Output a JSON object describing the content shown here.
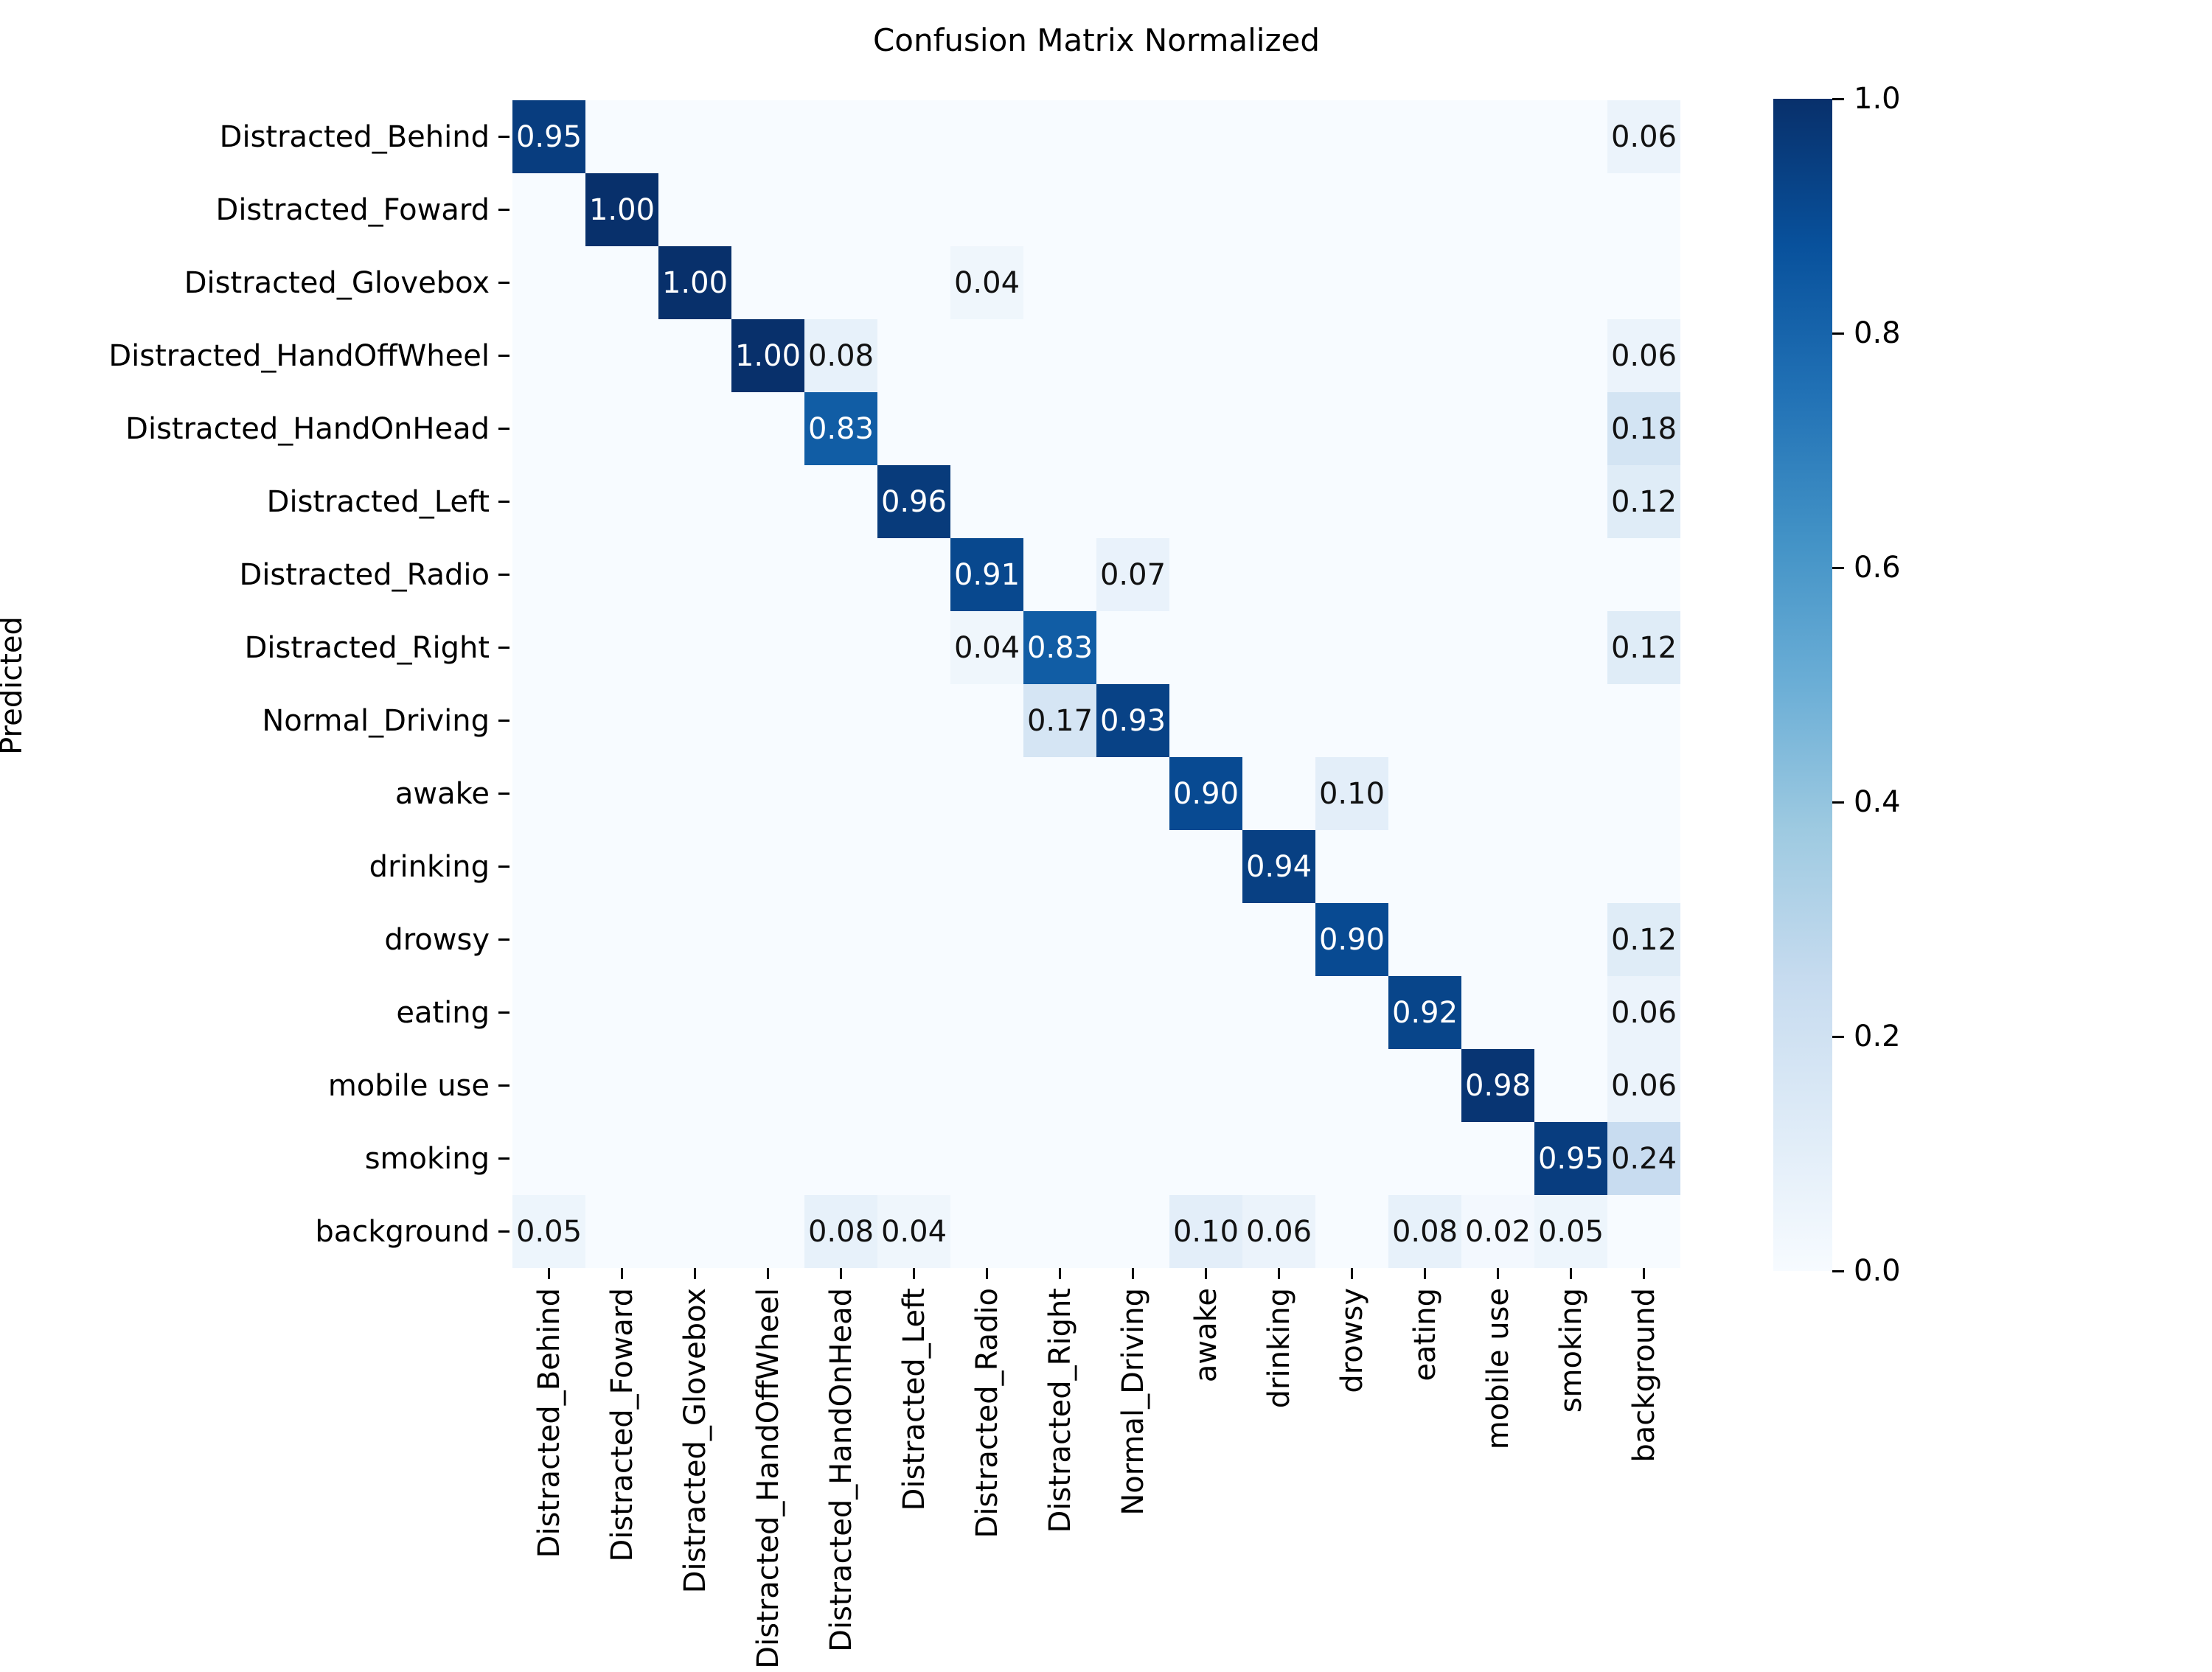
{
  "title": "Confusion Matrix Normalized",
  "axes": {
    "ylabel": "Predicted"
  },
  "chart_data": {
    "type": "heatmap",
    "title": "Confusion Matrix Normalized",
    "ylabel": "Predicted",
    "xlabel": "",
    "categories": [
      "Distracted_Behind",
      "Distracted_Foward",
      "Distracted_Glovebox",
      "Distracted_HandOffWheel",
      "Distracted_HandOnHead",
      "Distracted_Left",
      "Distracted_Radio",
      "Distracted_Right",
      "Normal_Driving",
      "awake",
      "drinking",
      "drowsy",
      "eating",
      "mobile use",
      "smoking",
      "background"
    ],
    "matrix": [
      [
        0.95,
        0,
        0,
        0,
        0,
        0,
        0,
        0,
        0,
        0,
        0,
        0,
        0,
        0,
        0,
        0.06
      ],
      [
        0,
        1.0,
        0,
        0,
        0,
        0,
        0,
        0,
        0,
        0,
        0,
        0,
        0,
        0,
        0,
        0
      ],
      [
        0,
        0,
        1.0,
        0,
        0,
        0,
        0.04,
        0,
        0,
        0,
        0,
        0,
        0,
        0,
        0,
        0
      ],
      [
        0,
        0,
        0,
        1.0,
        0.08,
        0,
        0,
        0,
        0,
        0,
        0,
        0,
        0,
        0,
        0,
        0.06
      ],
      [
        0,
        0,
        0,
        0,
        0.83,
        0,
        0,
        0,
        0,
        0,
        0,
        0,
        0,
        0,
        0,
        0.18
      ],
      [
        0,
        0,
        0,
        0,
        0,
        0.96,
        0,
        0,
        0,
        0,
        0,
        0,
        0,
        0,
        0,
        0.12
      ],
      [
        0,
        0,
        0,
        0,
        0,
        0,
        0.91,
        0,
        0.07,
        0,
        0,
        0,
        0,
        0,
        0,
        0
      ],
      [
        0,
        0,
        0,
        0,
        0,
        0,
        0.04,
        0.83,
        0,
        0,
        0,
        0,
        0,
        0,
        0,
        0.12
      ],
      [
        0,
        0,
        0,
        0,
        0,
        0,
        0,
        0.17,
        0.93,
        0,
        0,
        0,
        0,
        0,
        0,
        0
      ],
      [
        0,
        0,
        0,
        0,
        0,
        0,
        0,
        0,
        0,
        0.9,
        0,
        0.1,
        0,
        0,
        0,
        0
      ],
      [
        0,
        0,
        0,
        0,
        0,
        0,
        0,
        0,
        0,
        0,
        0.94,
        0,
        0,
        0,
        0,
        0
      ],
      [
        0,
        0,
        0,
        0,
        0,
        0,
        0,
        0,
        0,
        0,
        0,
        0.9,
        0,
        0,
        0,
        0.12
      ],
      [
        0,
        0,
        0,
        0,
        0,
        0,
        0,
        0,
        0,
        0,
        0,
        0,
        0.92,
        0,
        0,
        0.06
      ],
      [
        0,
        0,
        0,
        0,
        0,
        0,
        0,
        0,
        0,
        0,
        0,
        0,
        0,
        0.98,
        0,
        0.06
      ],
      [
        0,
        0,
        0,
        0,
        0,
        0,
        0,
        0,
        0,
        0,
        0,
        0,
        0,
        0,
        0.95,
        0.24
      ],
      [
        0.05,
        0,
        0,
        0,
        0.08,
        0.04,
        0,
        0,
        0,
        0.1,
        0.06,
        0,
        0.08,
        0.02,
        0.05,
        0
      ]
    ],
    "vmin": 0.0,
    "vmax": 1.0,
    "grid": false,
    "legend_position": "right-colorbar",
    "colormap_name": "Blues",
    "colormap_stops": [
      {
        "pos": 0.0,
        "color": "#f7fbff"
      },
      {
        "pos": 0.125,
        "color": "#deebf7"
      },
      {
        "pos": 0.25,
        "color": "#c6dbef"
      },
      {
        "pos": 0.375,
        "color": "#9ecae1"
      },
      {
        "pos": 0.5,
        "color": "#6baed6"
      },
      {
        "pos": 0.625,
        "color": "#4292c6"
      },
      {
        "pos": 0.75,
        "color": "#2171b5"
      },
      {
        "pos": 0.875,
        "color": "#08519c"
      },
      {
        "pos": 1.0,
        "color": "#08306b"
      }
    ],
    "colorbar_ticks": [
      {
        "label": "1.0",
        "value": 1.0
      },
      {
        "label": "0.8",
        "value": 0.8
      },
      {
        "label": "0.6",
        "value": 0.6
      },
      {
        "label": "0.4",
        "value": 0.4
      },
      {
        "label": "0.2",
        "value": 0.2
      },
      {
        "label": "0.0",
        "value": 0.0
      }
    ],
    "annotation_format": "two decimals, zero cells left blank",
    "annotation_text_dark": "#111111",
    "annotation_text_light": "#ffffff"
  }
}
